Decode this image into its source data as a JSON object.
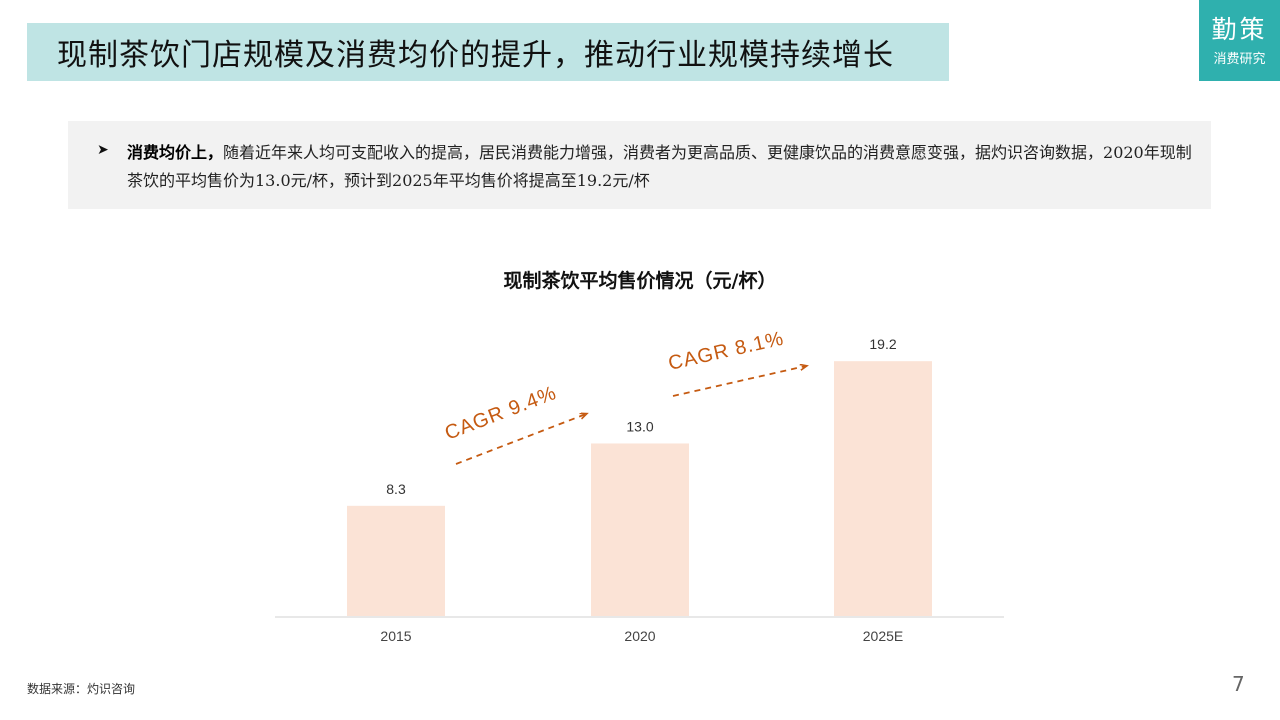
{
  "slide": {
    "title": "现制茶饮门店规模及消费均价的提升，推动行业规模持续增长",
    "logo_main": "勤策",
    "logo_sub": "消费研究",
    "bullet": {
      "lead": "消费均价上，",
      "body": "随着近年来人均可支配收入的提高，居民消费能力增强，消费者为更高品质、更健康饮品的消费意愿变强，据灼识咨询数据，2020年现制茶饮的平均售价为13.0元/杯，预计到2025年平均售价将提高至19.2元/杯"
    },
    "source": "数据来源：灼识咨询",
    "page_number": "7"
  },
  "chart_data": {
    "type": "bar",
    "title": "现制茶饮平均售价情况（元/杯）",
    "categories": [
      "2015",
      "2020",
      "2025E"
    ],
    "values": [
      8.3,
      13.0,
      19.2
    ],
    "data_labels": [
      "8.3",
      "13.0",
      "19.2"
    ],
    "ylim": [
      0,
      21
    ],
    "bar_color": "#fbe3d6",
    "annotations": [
      {
        "text": "CAGR 9.4%",
        "from": "2015",
        "to": "2020"
      },
      {
        "text": "CAGR 8.1%",
        "from": "2020",
        "to": "2025E"
      }
    ],
    "annotation_color": "#c55a11"
  }
}
